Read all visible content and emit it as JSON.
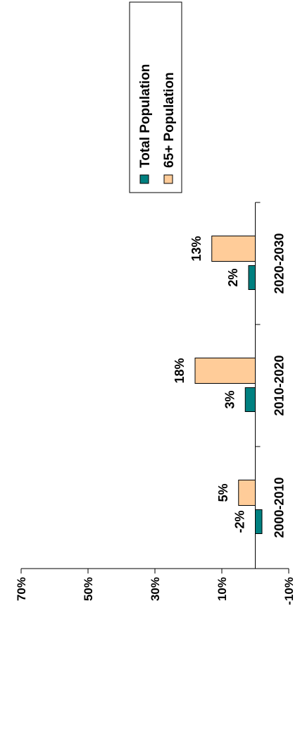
{
  "chart_data": {
    "type": "bar",
    "orientation": "rotated-90",
    "title": "",
    "xlabel": "",
    "ylabel": "",
    "categories": [
      "2000-2010",
      "2010-2020",
      "2020-2030"
    ],
    "series": [
      {
        "name": "Total Population",
        "values": [
          -2,
          3,
          2
        ],
        "labels": [
          "-2%",
          "3%",
          "2%"
        ],
        "color": "#008080"
      },
      {
        "name": "65+ Population",
        "values": [
          5,
          18,
          13
        ],
        "labels": [
          "5%",
          "18%",
          "13%"
        ],
        "color": "#FFCC99"
      }
    ],
    "ylim": [
      -10,
      70
    ],
    "yticks": [
      -10,
      10,
      30,
      50,
      70
    ],
    "ytick_labels": [
      "-10%",
      "10%",
      "30%",
      "50%",
      "70%"
    ],
    "grid": false,
    "legend_position": "top-right"
  }
}
